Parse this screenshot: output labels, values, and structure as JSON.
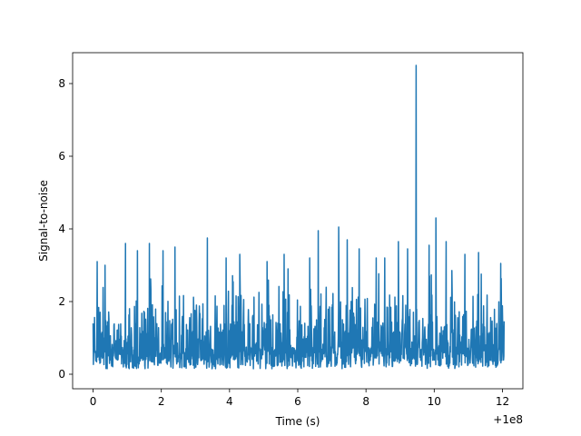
{
  "chart_data": {
    "type": "line",
    "title": "",
    "xlabel": "Time (s)",
    "ylabel": "Signal-to-noise",
    "x_offset_label": "+1e8",
    "xlim": [
      -0.6,
      12.6
    ],
    "ylim": [
      -0.4,
      8.85
    ],
    "grid": false,
    "line_color": "#1f77b4",
    "x_ticks": [
      {
        "value": 0,
        "label": "0"
      },
      {
        "value": 2,
        "label": "2"
      },
      {
        "value": 4,
        "label": "4"
      },
      {
        "value": 6,
        "label": "6"
      },
      {
        "value": 8,
        "label": "8"
      },
      {
        "value": 10,
        "label": "10"
      },
      {
        "value": 12,
        "label": "12"
      }
    ],
    "y_ticks": [
      {
        "value": 0,
        "label": "0"
      },
      {
        "value": 2,
        "label": "2"
      },
      {
        "value": 4,
        "label": "4"
      },
      {
        "value": 6,
        "label": "6"
      },
      {
        "value": 8,
        "label": "8"
      }
    ],
    "x_range": [
      0,
      12.05
    ],
    "noise_band": [
      0.05,
      3.0
    ],
    "peaks": [
      {
        "x": 0.0,
        "y": 1.4
      },
      {
        "x": 0.12,
        "y": 3.1
      },
      {
        "x": 0.35,
        "y": 3.0
      },
      {
        "x": 0.95,
        "y": 3.6
      },
      {
        "x": 1.3,
        "y": 3.4
      },
      {
        "x": 1.65,
        "y": 3.6
      },
      {
        "x": 2.05,
        "y": 3.4
      },
      {
        "x": 2.4,
        "y": 3.5
      },
      {
        "x": 3.35,
        "y": 3.75
      },
      {
        "x": 3.9,
        "y": 3.2
      },
      {
        "x": 4.3,
        "y": 3.3
      },
      {
        "x": 5.1,
        "y": 3.1
      },
      {
        "x": 5.6,
        "y": 3.3
      },
      {
        "x": 6.35,
        "y": 3.2
      },
      {
        "x": 6.6,
        "y": 3.95
      },
      {
        "x": 7.2,
        "y": 4.05
      },
      {
        "x": 7.45,
        "y": 3.7
      },
      {
        "x": 7.8,
        "y": 3.45
      },
      {
        "x": 8.3,
        "y": 3.2
      },
      {
        "x": 8.55,
        "y": 3.2
      },
      {
        "x": 8.95,
        "y": 3.65
      },
      {
        "x": 9.22,
        "y": 3.45
      },
      {
        "x": 9.47,
        "y": 8.5
      },
      {
        "x": 9.85,
        "y": 3.55
      },
      {
        "x": 10.05,
        "y": 4.3
      },
      {
        "x": 10.35,
        "y": 3.65
      },
      {
        "x": 10.9,
        "y": 3.3
      },
      {
        "x": 11.3,
        "y": 3.35
      },
      {
        "x": 11.95,
        "y": 3.05
      }
    ]
  }
}
